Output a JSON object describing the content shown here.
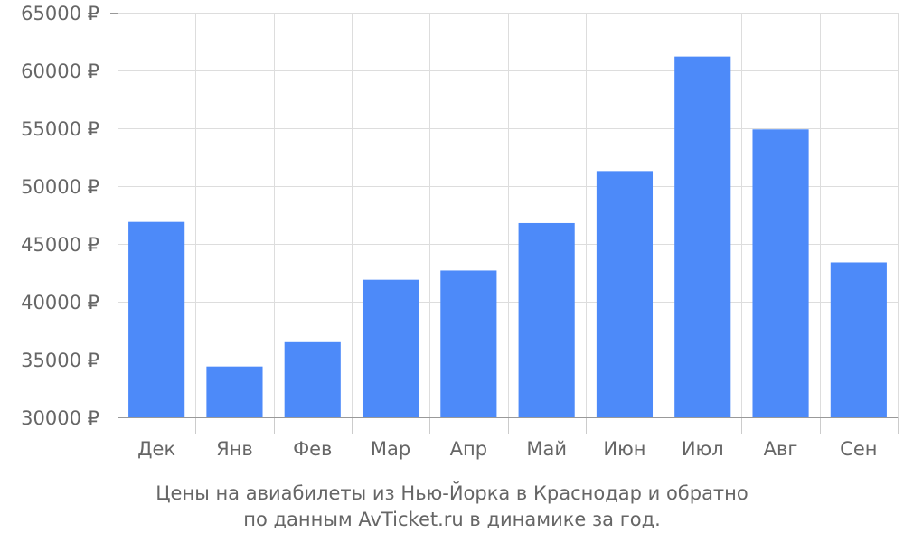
{
  "chart_data": {
    "type": "bar",
    "categories": [
      "Дек",
      "Янв",
      "Фев",
      "Мар",
      "Апр",
      "Май",
      "Июн",
      "Июл",
      "Авг",
      "Сен"
    ],
    "values": [
      46900,
      34400,
      36500,
      41900,
      42700,
      46800,
      51300,
      61200,
      54900,
      43400
    ],
    "ylim": [
      30000,
      65000
    ],
    "yticks": [
      30000,
      35000,
      40000,
      45000,
      50000,
      55000,
      60000,
      65000
    ],
    "ytick_labels": [
      "30000 ₽",
      "35000 ₽",
      "40000 ₽",
      "45000 ₽",
      "50000 ₽",
      "55000 ₽",
      "60000 ₽",
      "65000 ₽"
    ],
    "grid": true,
    "bar_color": "#4d8af9",
    "caption_lines": [
      "Цены на авиабилеты из Нью-Йорка в Краснодар и обратно",
      "по данным AvTicket.ru в динамике за год."
    ]
  }
}
